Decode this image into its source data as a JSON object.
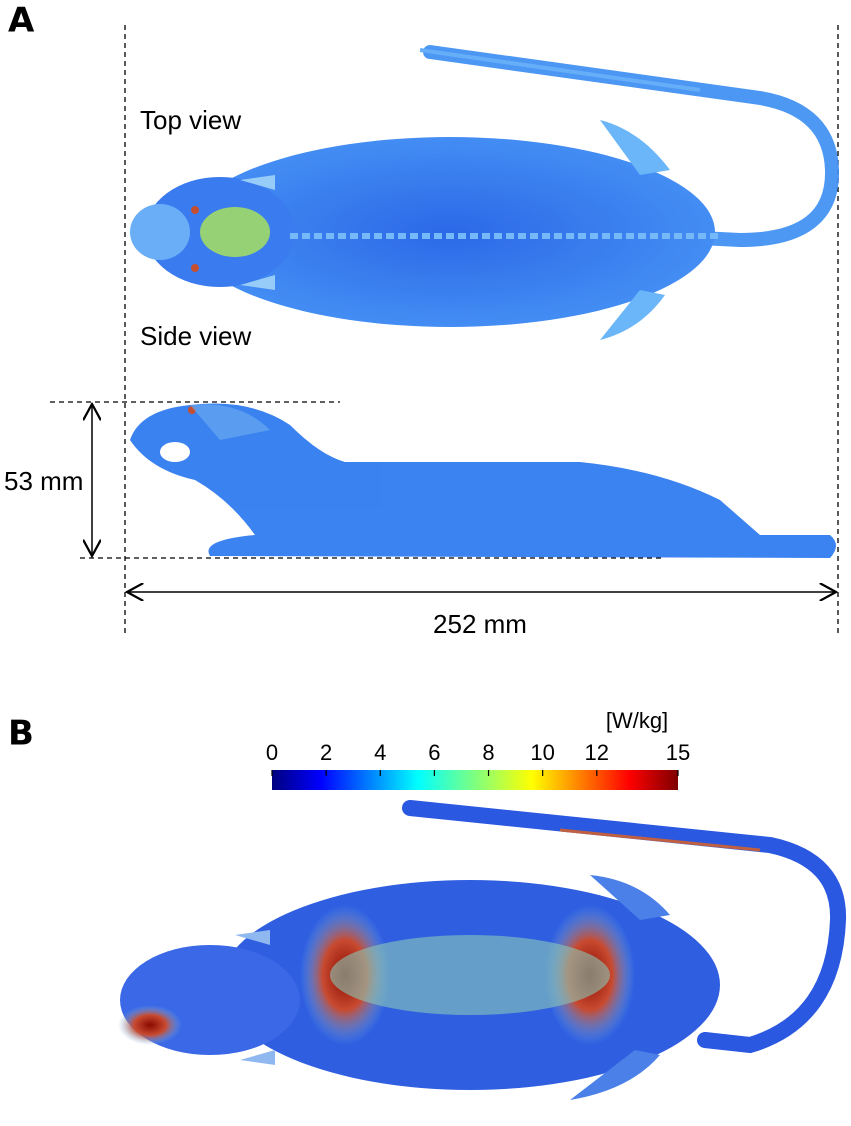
{
  "panel_a": {
    "label": "A",
    "top_view_label": "Top view",
    "side_view_label": "Side view",
    "height_label": "53 mm",
    "length_label": "252 mm"
  },
  "panel_b": {
    "label": "B",
    "colorbar": {
      "unit": "[W/kg]",
      "range": [
        0,
        15
      ],
      "ticks": [
        0,
        2,
        4,
        6,
        8,
        10,
        12,
        15
      ]
    }
  }
}
